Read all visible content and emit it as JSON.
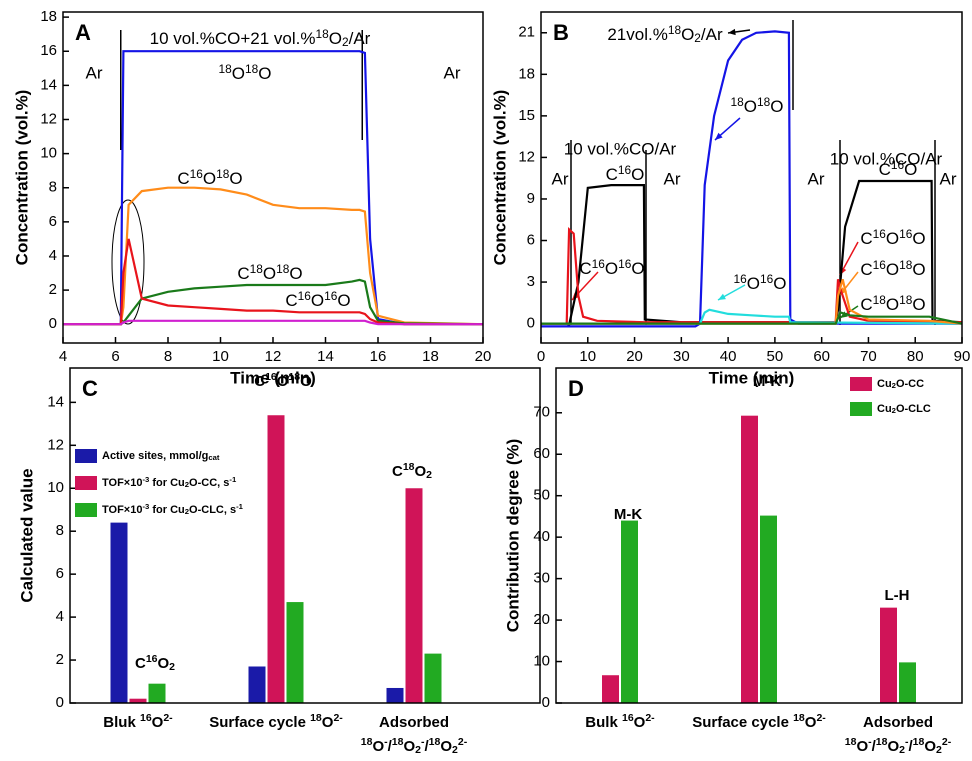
{
  "chart_data": [
    {
      "type": "line",
      "title": "A",
      "xlabel": "Time (min)",
      "ylabel": "Concentration (vol.%)",
      "xlim": [
        4,
        20
      ],
      "ylim": [
        -1.1,
        18.3
      ],
      "xticks": [
        4,
        6,
        8,
        10,
        12,
        14,
        16,
        18,
        20
      ],
      "yticks": [
        0,
        2,
        4,
        6,
        8,
        10,
        12,
        14,
        16,
        18
      ],
      "x": [
        4,
        6,
        6.2,
        6.3,
        6.5,
        7,
        8,
        9,
        10,
        11,
        12,
        13,
        14,
        15,
        15.3,
        15.5,
        15.7,
        16,
        17,
        20
      ],
      "series": [
        {
          "color": "#1414e6",
          "values": [
            0,
            0,
            0,
            16,
            16,
            16,
            16,
            16,
            16,
            16,
            16,
            16,
            16,
            16,
            16,
            15.9,
            5,
            0.3,
            0,
            0
          ]
        },
        {
          "color": "#ff8c1a",
          "values": [
            0,
            0,
            0,
            1,
            7,
            7.8,
            8,
            8,
            7.9,
            7.6,
            7,
            6.8,
            6.8,
            6.7,
            6.7,
            6.6,
            3,
            0.5,
            0.1,
            0
          ]
        },
        {
          "color": "#1a7a1a",
          "values": [
            0,
            0,
            0,
            0.1,
            0.5,
            1.5,
            1.9,
            2.1,
            2.2,
            2.3,
            2.3,
            2.3,
            2.3,
            2.5,
            2.6,
            2.5,
            1,
            0.2,
            0.05,
            0
          ]
        },
        {
          "color": "#e8141c",
          "values": [
            0,
            0,
            0,
            3,
            5,
            1.5,
            1.1,
            1,
            0.9,
            0.8,
            0.8,
            0.7,
            0.7,
            0.7,
            0.7,
            0.6,
            0.3,
            0.1,
            0,
            0
          ]
        },
        {
          "color": "#d020d0",
          "values": [
            0,
            0,
            0,
            0.1,
            0.2,
            0.2,
            0.2,
            0.2,
            0.2,
            0.2,
            0.2,
            0.2,
            0.2,
            0.2,
            0.2,
            0.2,
            0.1,
            0,
            0,
            0
          ]
        }
      ],
      "annotations": [
        {
          "text": "Ar"
        },
        {
          "text": [
            {
              "t": "10 vol.%CO+21 vol.%"
            },
            {
              "sup": "18"
            },
            {
              "t": "O"
            },
            {
              "sub": "2"
            },
            {
              "t": "/Ar"
            }
          ]
        },
        {
          "text": "Ar"
        },
        {
          "text": [
            {
              "sup": "18"
            },
            {
              "t": "O"
            },
            {
              "sup": "18"
            },
            {
              "t": "O"
            }
          ],
          "color": "#1414e6"
        },
        {
          "text": [
            {
              "t": "C"
            },
            {
              "sup": "16"
            },
            {
              "t": "O"
            },
            {
              "sup": "18"
            },
            {
              "t": "O"
            }
          ],
          "color": "#ff8c1a"
        },
        {
          "text": [
            {
              "t": "C"
            },
            {
              "sup": "18"
            },
            {
              "t": "O"
            },
            {
              "sup": "18"
            },
            {
              "t": "O"
            }
          ],
          "color": "#1a7a1a"
        },
        {
          "text": [
            {
              "t": "C"
            },
            {
              "sup": "16"
            },
            {
              "t": "O"
            },
            {
              "sup": "16"
            },
            {
              "t": "O"
            }
          ],
          "color": "#e8141c"
        }
      ]
    },
    {
      "type": "line",
      "title": "B",
      "xlabel": "Time (min)",
      "ylabel": "Concentration (vol.%)",
      "xlim": [
        0,
        90
      ],
      "ylim": [
        -1.4,
        22.5
      ],
      "xticks": [
        0,
        10,
        20,
        30,
        40,
        50,
        60,
        70,
        80,
        90
      ],
      "yticks": [
        0,
        3,
        6,
        9,
        12,
        15,
        18,
        21
      ],
      "series": [
        {
          "color": "#000000",
          "x": [
            0,
            5.5,
            6,
            8,
            10,
            15,
            22,
            22.2,
            30,
            63,
            63.5,
            65,
            68,
            75,
            83.5,
            83.7,
            90
          ],
          "values": [
            0,
            0,
            -0.1,
            3,
            9.8,
            10,
            10,
            0.3,
            0.1,
            0.1,
            1,
            7,
            10.3,
            10.3,
            10.3,
            0.2,
            0.1
          ]
        },
        {
          "color": "#e8141c",
          "x": [
            0,
            5.5,
            6,
            7,
            8,
            9,
            12,
            22,
            63,
            63.5,
            64,
            66,
            70,
            90
          ],
          "values": [
            0,
            0,
            6.8,
            6.5,
            2,
            0.5,
            0.2,
            0.1,
            0.1,
            3.2,
            2.5,
            0.5,
            0.2,
            0.1
          ]
        },
        {
          "color": "#1414e6",
          "x": [
            0,
            33,
            34,
            35,
            37,
            40,
            43,
            46,
            50,
            53,
            53.3,
            55,
            90
          ],
          "values": [
            -0.2,
            -0.2,
            0,
            10,
            15,
            19,
            20.5,
            21,
            21.1,
            21,
            0.3,
            0,
            0
          ]
        },
        {
          "color": "#22dddd",
          "x": [
            0,
            34,
            35,
            36,
            40,
            45,
            50,
            53,
            53.3,
            90
          ],
          "values": [
            0,
            0,
            0.8,
            1,
            0.7,
            0.6,
            0.5,
            0.5,
            0.1,
            0
          ]
        },
        {
          "color": "#ff8c1a",
          "x": [
            0,
            63,
            63.5,
            64.5,
            66,
            70,
            83,
            90
          ],
          "values": [
            0,
            0,
            2,
            3.2,
            1,
            0.3,
            0.2,
            0
          ]
        },
        {
          "color": "#1a7a1a",
          "x": [
            0,
            63,
            64,
            66,
            70,
            83,
            90
          ],
          "values": [
            0,
            0,
            0.8,
            0.6,
            0.5,
            0.5,
            0
          ]
        }
      ],
      "annotations": [
        {
          "text": [
            {
              "t": "21vol.%"
            },
            {
              "sup": "18"
            },
            {
              "t": "O"
            },
            {
              "sub": "2"
            },
            {
              "t": "/Ar"
            }
          ]
        },
        {
          "text": [
            {
              "sup": "18"
            },
            {
              "t": "O"
            },
            {
              "sup": "18"
            },
            {
              "t": "O"
            }
          ],
          "color": "#1414e6"
        },
        {
          "text": "10 vol.%CO/Ar"
        },
        {
          "text": "Ar"
        },
        {
          "text": [
            {
              "t": "C"
            },
            {
              "sup": "16"
            },
            {
              "t": "O"
            }
          ]
        },
        {
          "text": "Ar"
        },
        {
          "text": [
            {
              "sup": "16"
            },
            {
              "t": "O"
            },
            {
              "sup": "16"
            },
            {
              "t": "O"
            }
          ],
          "color": "#22dddd"
        },
        {
          "text": [
            {
              "t": "C"
            },
            {
              "sup": "16"
            },
            {
              "t": "O"
            },
            {
              "sup": "16"
            },
            {
              "t": "O"
            }
          ],
          "color": "#e8141c"
        },
        {
          "text": "Ar"
        },
        {
          "text": "10 vol.%CO/Ar"
        },
        {
          "text": [
            {
              "t": "C"
            },
            {
              "sup": "16"
            },
            {
              "t": "O"
            }
          ]
        },
        {
          "text": "Ar"
        },
        {
          "text": [
            {
              "t": "C"
            },
            {
              "sup": "16"
            },
            {
              "t": "O"
            },
            {
              "sup": "16"
            },
            {
              "t": "O"
            }
          ],
          "color": "#e8141c"
        },
        {
          "text": [
            {
              "t": "C"
            },
            {
              "sup": "16"
            },
            {
              "t": "O"
            },
            {
              "sup": "18"
            },
            {
              "t": "O"
            }
          ],
          "color": "#ff8c1a"
        },
        {
          "text": [
            {
              "t": "C"
            },
            {
              "sup": "18"
            },
            {
              "t": "O"
            },
            {
              "sup": "18"
            },
            {
              "t": "O"
            }
          ],
          "color": "#1a7a1a"
        }
      ]
    },
    {
      "type": "bar",
      "title": "C",
      "ylabel": "Calculated value",
      "ylim": [
        0,
        15.6
      ],
      "yticks": [
        0,
        2,
        4,
        6,
        8,
        10,
        12,
        14
      ],
      "legend": "upper left",
      "categories": [
        [
          [
            {
              "t": "Bluk "
            },
            {
              "sup": "16"
            },
            {
              "t": "O"
            },
            {
              "sup": "2-"
            }
          ]
        ],
        [
          [
            {
              "t": "Surface cycle "
            },
            {
              "sup": "18"
            },
            {
              "t": "O"
            },
            {
              "sup": "2-"
            }
          ]
        ],
        [
          [
            {
              "t": "Adsorbed"
            }
          ],
          [
            {
              "sup": "18"
            },
            {
              "t": "O"
            },
            {
              "sup": "-"
            },
            {
              "t": "/"
            },
            {
              "sup": "18"
            },
            {
              "t": "O"
            },
            {
              "sub": "2"
            },
            {
              "sup": "-"
            },
            {
              "t": "/"
            },
            {
              "sup": "18"
            },
            {
              "t": "O"
            },
            {
              "sub": "2"
            },
            {
              "sup": "2-"
            }
          ]
        ]
      ],
      "series": [
        {
          "name": [
            {
              "t": "Active sites, mmol/g"
            },
            {
              "sub": "cat"
            }
          ],
          "color": "#1a1aa8",
          "values": [
            8.4,
            1.7,
            0.7
          ]
        },
        {
          "name": [
            {
              "t": "TOF×10"
            },
            {
              "sup": "-3"
            },
            {
              "t": " for Cu"
            },
            {
              "sub": "2"
            },
            {
              "t": "O-CC, s"
            },
            {
              "sup": "-1"
            }
          ],
          "color": "#d01458",
          "values": [
            0.2,
            13.4,
            10.0
          ]
        },
        {
          "name": [
            {
              "t": "TOF×10"
            },
            {
              "sup": "-3"
            },
            {
              "t": " for Cu"
            },
            {
              "sub": "2"
            },
            {
              "t": "O-CLC, s"
            },
            {
              "sup": "-1"
            }
          ],
          "color": "#22aa22",
          "values": [
            0.9,
            4.7,
            2.3
          ]
        }
      ],
      "annotations": [
        {
          "text": [
            {
              "t": "C"
            },
            {
              "sup": "16"
            },
            {
              "t": "O"
            },
            {
              "sub": "2"
            }
          ]
        },
        {
          "text": [
            {
              "t": "C"
            },
            {
              "sup": "16"
            },
            {
              "t": "O"
            },
            {
              "sup": "18"
            },
            {
              "t": "O"
            }
          ]
        },
        {
          "text": [
            {
              "t": "C"
            },
            {
              "sup": "18"
            },
            {
              "t": "O"
            },
            {
              "sub": "2"
            }
          ]
        }
      ]
    },
    {
      "type": "bar",
      "title": "D",
      "ylabel": "Contribution degree (%)",
      "ylim": [
        0,
        80.8
      ],
      "yticks": [
        0,
        10,
        20,
        30,
        40,
        50,
        60,
        70
      ],
      "legend": "upper right",
      "categories": [
        [
          [
            {
              "t": "Bulk "
            },
            {
              "sup": "16"
            },
            {
              "t": "O"
            },
            {
              "sup": "2-"
            }
          ]
        ],
        [
          [
            {
              "t": "Surface cycle "
            },
            {
              "sup": "18"
            },
            {
              "t": "O"
            },
            {
              "sup": "2-"
            }
          ]
        ],
        [
          [
            {
              "t": "Adsorbed"
            }
          ],
          [
            {
              "sup": "18"
            },
            {
              "t": "O"
            },
            {
              "sup": "-"
            },
            {
              "t": "/"
            },
            {
              "sup": "18"
            },
            {
              "t": "O"
            },
            {
              "sub": "2"
            },
            {
              "sup": "-"
            },
            {
              "t": "/"
            },
            {
              "sup": "18"
            },
            {
              "t": "O"
            },
            {
              "sub": "2"
            },
            {
              "sup": "2-"
            }
          ]
        ]
      ],
      "series": [
        {
          "name": [
            {
              "t": "Cu"
            },
            {
              "sub": "2"
            },
            {
              "t": "O-CC"
            }
          ],
          "color": "#d01458",
          "values": [
            6.7,
            69.3,
            23.0
          ]
        },
        {
          "name": [
            {
              "t": "Cu"
            },
            {
              "sub": "2"
            },
            {
              "t": "O-CLC"
            }
          ],
          "color": "#22aa22",
          "values": [
            44.0,
            45.2,
            9.8
          ]
        }
      ],
      "annotations": [
        {
          "text": "M-K"
        },
        {
          "text": "M-K"
        },
        {
          "text": "L-H"
        }
      ]
    }
  ]
}
